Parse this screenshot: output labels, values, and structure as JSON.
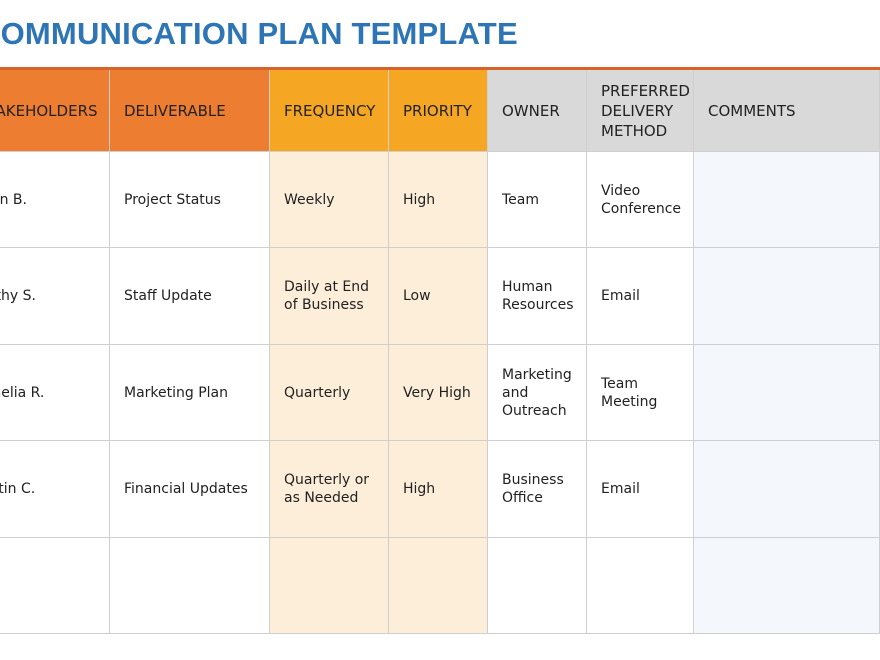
{
  "title": "COMMUNICATION PLAN TEMPLATE",
  "colors": {
    "title": "#2e75b6",
    "orange": "#ed7d31",
    "gold": "#f5a623",
    "gray": "#d9d9d9",
    "peach": "#fdeed9",
    "comments": "#f4f7fb"
  },
  "headers": [
    "STAKEHOLDERS",
    "DELIVERABLE",
    "FREQUENCY",
    "PRIORITY",
    "OWNER",
    "PREFERRED DELIVERY METHOD",
    "COMMENTS"
  ],
  "rows": [
    [
      "John B.",
      "Project Status",
      "Weekly",
      "High",
      "Team",
      "Video Conference",
      ""
    ],
    [
      "Kathy S.",
      "Staff Update",
      "Daily at End of Business",
      "Low",
      "Human Resources",
      "Email",
      ""
    ],
    [
      "Amelia R.",
      "Marketing Plan",
      "Quarterly",
      "Very High",
      "Marketing and Outreach",
      "Team Meeting",
      ""
    ],
    [
      "Justin C.",
      "Financial Updates",
      "Quarterly or as Needed",
      "High",
      "Business Office",
      "Email",
      ""
    ],
    [
      "",
      "",
      "",
      "",
      "",
      "",
      ""
    ]
  ]
}
